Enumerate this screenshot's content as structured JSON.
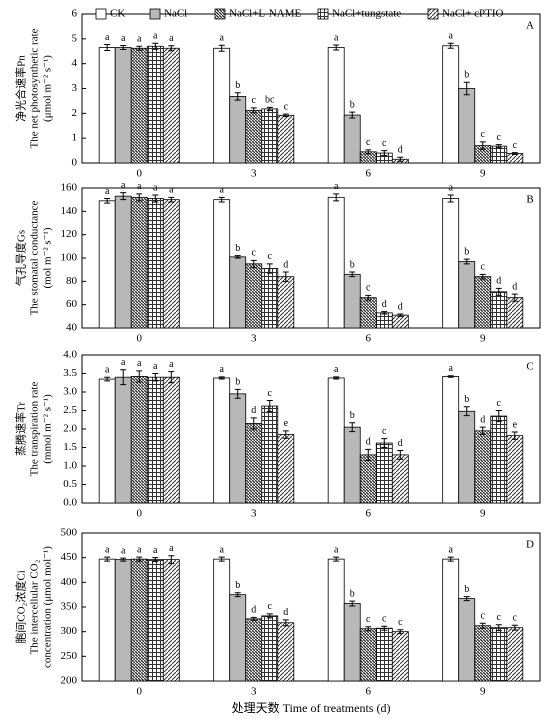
{
  "chart_data": [
    {
      "type": "bar",
      "panel_label": "A",
      "ylabel": [
        "净光合速率Pn",
        "The net photosynthetic rate",
        "(μmol m⁻² s⁻¹)"
      ],
      "categories": [
        "0",
        "3",
        "6",
        "9"
      ],
      "ylim": [
        0,
        6
      ],
      "yticks": [
        0,
        1,
        2,
        3,
        4,
        5,
        6
      ],
      "series": [
        {
          "name": "CK",
          "color": "#ffffff",
          "pattern": "solid",
          "values": [
            4.65,
            4.62,
            4.65,
            4.72
          ],
          "errors": [
            0.12,
            0.12,
            0.1,
            0.1
          ],
          "letters": [
            "a",
            "a",
            "a",
            "a"
          ]
        },
        {
          "name": "NaCl",
          "color": "#b8b8b8",
          "pattern": "solid",
          "values": [
            4.65,
            2.68,
            1.93,
            3.0
          ],
          "errors": [
            0.08,
            0.15,
            0.12,
            0.25
          ],
          "letters": [
            "a",
            "b",
            "b",
            "b"
          ]
        },
        {
          "name": "NaCl+L-NAME",
          "color": "#333333",
          "pattern": "diagonal-dense",
          "values": [
            4.62,
            2.12,
            0.45,
            0.7
          ],
          "errors": [
            0.08,
            0.1,
            0.08,
            0.15
          ],
          "letters": [
            "a",
            "c",
            "c",
            "c"
          ]
        },
        {
          "name": "NaCl+tungstate",
          "color": "#333333",
          "pattern": "grid",
          "values": [
            4.7,
            2.18,
            0.4,
            0.68
          ],
          "errors": [
            0.12,
            0.06,
            0.1,
            0.06
          ],
          "letters": [
            "a",
            "bc",
            "c",
            "c"
          ]
        },
        {
          "name": "NaCl+ cPTIO",
          "color": "#333333",
          "pattern": "diagonal",
          "values": [
            4.62,
            1.92,
            0.15,
            0.38
          ],
          "errors": [
            0.1,
            0.05,
            0.08,
            0.04
          ],
          "letters": [
            "a",
            "c",
            "d",
            "c"
          ]
        }
      ]
    },
    {
      "type": "bar",
      "panel_label": "B",
      "ylabel": [
        "气孔导度Gs",
        "The stomatal conductance",
        "(mol m⁻² s⁻¹)"
      ],
      "categories": [
        "0",
        "3",
        "6",
        "9"
      ],
      "ylim": [
        40,
        160
      ],
      "yticks": [
        40,
        60,
        80,
        100,
        120,
        140,
        160
      ],
      "series": [
        {
          "color": "#ffffff",
          "pattern": "solid",
          "values": [
            149,
            150,
            152,
            151
          ],
          "errors": [
            2,
            2,
            3,
            3
          ],
          "letters": [
            "a",
            "a",
            "a",
            "a"
          ]
        },
        {
          "color": "#b8b8b8",
          "pattern": "solid",
          "values": [
            153,
            101,
            86,
            97
          ],
          "errors": [
            3,
            1,
            2,
            2
          ],
          "letters": [
            "a",
            "b",
            "b",
            "b"
          ]
        },
        {
          "color": "#333333",
          "pattern": "diagonal-dense",
          "values": [
            152,
            95,
            66,
            84
          ],
          "errors": [
            3,
            3,
            2,
            2
          ],
          "letters": [
            "a",
            "c",
            "c",
            "c"
          ]
        },
        {
          "color": "#333333",
          "pattern": "grid",
          "values": [
            151,
            91,
            53,
            71
          ],
          "errors": [
            3,
            4,
            1,
            3
          ],
          "letters": [
            "a",
            "c",
            "d",
            "d"
          ]
        },
        {
          "color": "#333333",
          "pattern": "diagonal",
          "values": [
            150,
            84,
            51,
            66
          ],
          "errors": [
            2,
            4,
            1,
            3
          ],
          "letters": [
            "a",
            "d",
            "d",
            "d"
          ]
        }
      ]
    },
    {
      "type": "bar",
      "panel_label": "C",
      "ylabel": [
        "蒸腾速率Tr",
        "The transpiration rate",
        "(mmol m⁻² s⁻¹)"
      ],
      "categories": [
        "0",
        "3",
        "6",
        "9"
      ],
      "ylim": [
        0,
        4
      ],
      "yticks": [
        {
          "value": 0,
          "label": "0.0"
        },
        0.5,
        {
          "value": 1,
          "label": "1.0"
        },
        1.5,
        {
          "value": 2,
          "label": "2.0"
        },
        2.5,
        {
          "value": 3,
          "label": "3.0"
        },
        3.5,
        {
          "value": 4,
          "label": "4.0"
        }
      ],
      "series": [
        {
          "color": "#ffffff",
          "pattern": "solid",
          "values": [
            3.35,
            3.38,
            3.38,
            3.42
          ],
          "errors": [
            0.05,
            0.03,
            0.03,
            0.02
          ],
          "letters": [
            "a",
            "a",
            "a",
            "a"
          ]
        },
        {
          "color": "#b8b8b8",
          "pattern": "solid",
          "values": [
            3.4,
            2.95,
            2.05,
            2.48
          ],
          "errors": [
            0.2,
            0.12,
            0.12,
            0.12
          ],
          "letters": [
            "a",
            "b",
            "b",
            "b"
          ]
        },
        {
          "color": "#333333",
          "pattern": "diagonal-dense",
          "values": [
            3.42,
            2.15,
            1.3,
            1.95
          ],
          "errors": [
            0.15,
            0.15,
            0.15,
            0.1
          ],
          "letters": [
            "a",
            "d",
            "d",
            "d"
          ]
        },
        {
          "color": "#333333",
          "pattern": "grid",
          "values": [
            3.4,
            2.62,
            1.62,
            2.35
          ],
          "errors": [
            0.1,
            0.15,
            0.12,
            0.15
          ],
          "letters": [
            "a",
            "c",
            "c",
            "c"
          ]
        },
        {
          "color": "#333333",
          "pattern": "diagonal",
          "values": [
            3.4,
            1.85,
            1.3,
            1.82
          ],
          "errors": [
            0.15,
            0.1,
            0.12,
            0.1
          ],
          "letters": [
            "a",
            "e",
            "d",
            "e"
          ]
        }
      ]
    },
    {
      "type": "bar",
      "panel_label": "D",
      "ylabel": [
        "胞间CO₂浓度Ci",
        "The intercellular CO₂",
        "concentration (μmol mol⁻¹)"
      ],
      "xlabel": "处理天数 Time of treatments (d)",
      "categories": [
        "0",
        "3",
        "6",
        "9"
      ],
      "ylim": [
        200,
        500
      ],
      "yticks": [
        200,
        250,
        300,
        350,
        400,
        450,
        500
      ],
      "series": [
        {
          "color": "#ffffff",
          "pattern": "solid",
          "values": [
            447,
            447,
            447,
            447
          ],
          "errors": [
            4,
            4,
            4,
            4
          ],
          "letters": [
            "a",
            "a",
            "a",
            "a"
          ]
        },
        {
          "color": "#b8b8b8",
          "pattern": "solid",
          "values": [
            446,
            375,
            357,
            367
          ],
          "errors": [
            3,
            4,
            5,
            4
          ],
          "letters": [
            "a",
            "b",
            "b",
            "b"
          ]
        },
        {
          "color": "#333333",
          "pattern": "diagonal-dense",
          "values": [
            447,
            326,
            306,
            312
          ],
          "errors": [
            4,
            3,
            4,
            5
          ],
          "letters": [
            "a",
            "d",
            "c",
            "c"
          ]
        },
        {
          "color": "#333333",
          "pattern": "grid",
          "values": [
            446,
            332,
            307,
            308
          ],
          "errors": [
            4,
            4,
            4,
            6
          ],
          "letters": [
            "a",
            "c",
            "c",
            "c"
          ]
        },
        {
          "color": "#333333",
          "pattern": "diagonal",
          "values": [
            446,
            318,
            300,
            308
          ],
          "errors": [
            8,
            6,
            4,
            5
          ],
          "letters": [
            "a",
            "d",
            "c",
            "c"
          ]
        }
      ]
    }
  ]
}
